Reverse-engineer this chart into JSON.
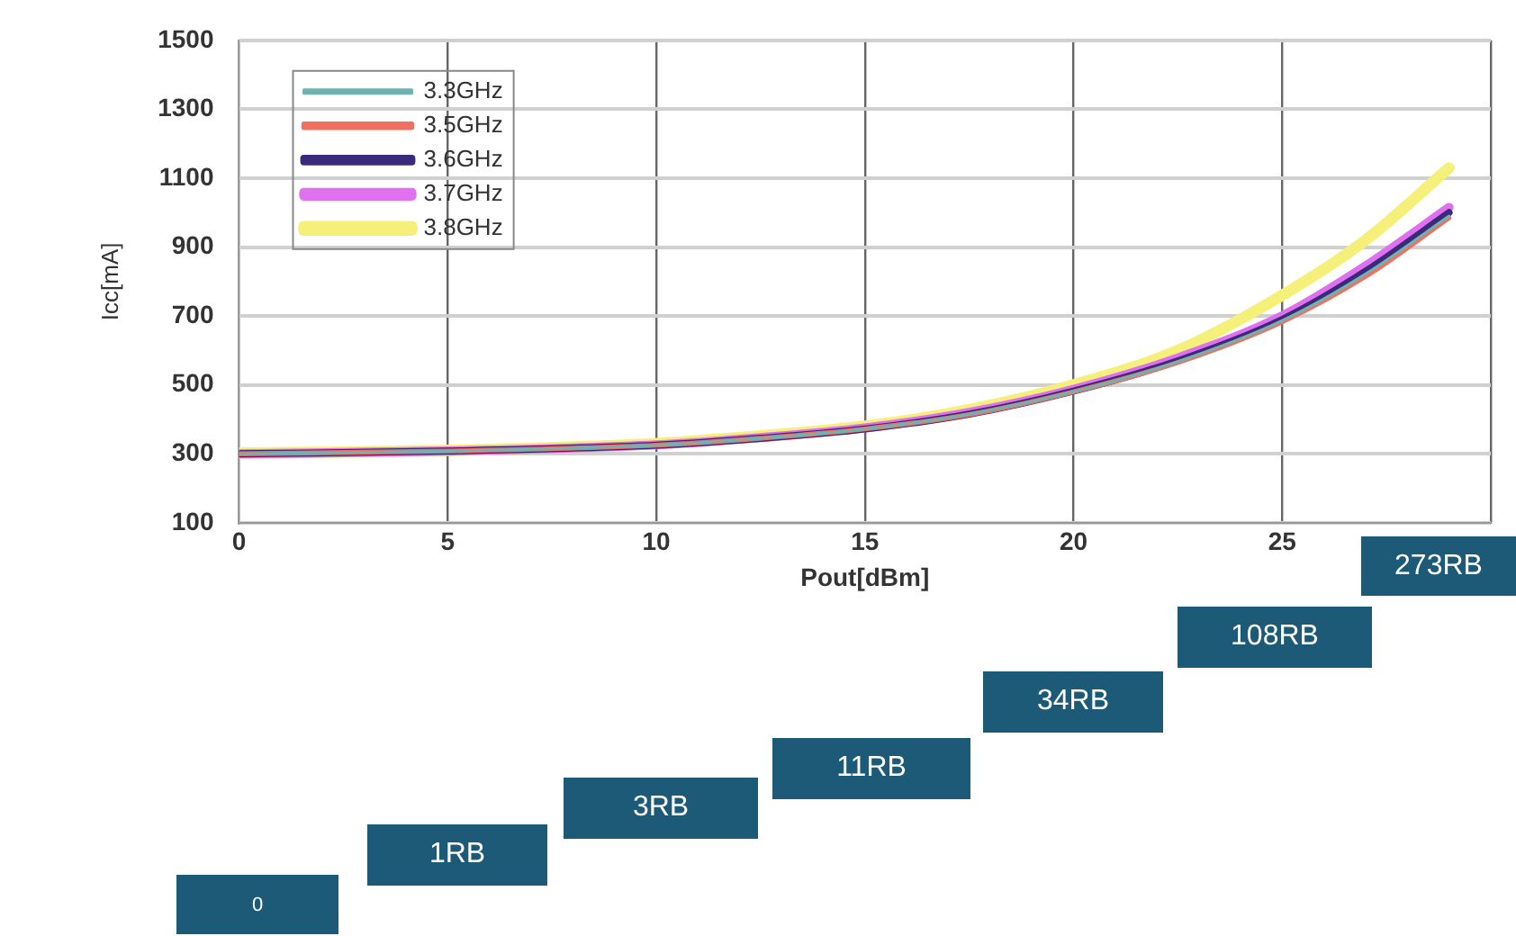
{
  "chart_data": {
    "type": "line",
    "xlabel": "Pout[dBm]",
    "ylabel": "Icc[mA]",
    "x": [
      0,
      5,
      10,
      12.5,
      15,
      17.5,
      20,
      22.5,
      25,
      27,
      29
    ],
    "series": [
      {
        "name": "3.3GHz",
        "color": "#6fb3b0",
        "values": [
          300,
          308,
          325,
          345,
          372,
          415,
          480,
          567,
          686,
          822,
          990
        ]
      },
      {
        "name": "3.5GHz",
        "color": "#f07060",
        "values": [
          300,
          308,
          325,
          345,
          372,
          414,
          480,
          565,
          683,
          815,
          985
        ]
      },
      {
        "name": "3.6GHz",
        "color": "#3a2a7a",
        "values": [
          300,
          308,
          325,
          345,
          372,
          415,
          482,
          570,
          690,
          830,
          1000
        ]
      },
      {
        "name": "3.7GHz",
        "color": "#e070f0",
        "values": [
          300,
          308,
          326,
          347,
          375,
          420,
          487,
          578,
          700,
          845,
          1015
        ]
      },
      {
        "name": "3.8GHz",
        "color": "#f5f07a",
        "values": [
          302,
          310,
          330,
          352,
          380,
          428,
          500,
          600,
          760,
          920,
          1130
        ]
      }
    ],
    "xlim": [
      0,
      30
    ],
    "xticks": [
      0,
      5,
      10,
      15,
      20,
      25,
      {
        "value": 30,
        "label": null
      }
    ],
    "ylim": [
      100,
      1500
    ],
    "yticks": [
      100,
      300,
      500,
      700,
      900,
      1100,
      1300,
      1500
    ],
    "grid": true,
    "legend": "top left",
    "marker": "none",
    "line_style": "solid",
    "annotations": [
      "0",
      "1RB",
      "3RB",
      "11RB",
      "34RB",
      "108RB",
      "273RB"
    ]
  }
}
